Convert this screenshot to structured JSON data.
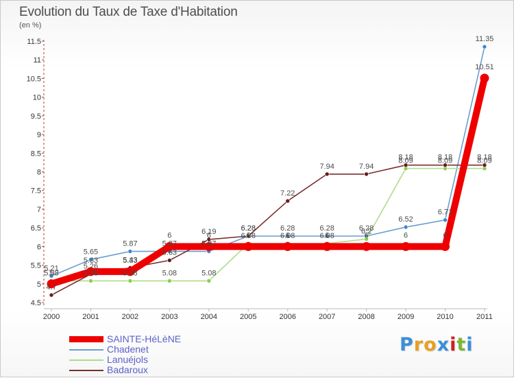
{
  "header": {
    "title": "Evolution du Taux de Taxe d'Habitation",
    "unit": "(en %)"
  },
  "brand": {
    "logo_text": "Proxiti",
    "letter_colors": [
      "#3a8fd8",
      "#e8a020",
      "#e8a020",
      "#3a8fd8",
      "#d02020",
      "#7ab830",
      "#3a8fd8"
    ]
  },
  "chart_data": {
    "type": "line",
    "title": "Evolution du Taux de Taxe d'Habitation",
    "ylabel": "(en %)",
    "xlabel": "",
    "x": [
      "2000",
      "2001",
      "2002",
      "2003",
      "2004",
      "2005",
      "2006",
      "2007",
      "2008",
      "2009",
      "2010",
      "2011"
    ],
    "ylim": [
      4.5,
      11.5
    ],
    "yticks": [
      "4.5",
      "5",
      "5.5",
      "6",
      "6.5",
      "7",
      "7.5",
      "8",
      "8.5",
      "9",
      "9.5",
      "10",
      "10.5",
      "11",
      "11.5"
    ],
    "grid": false,
    "legend_position": "bottom-left",
    "series": [
      {
        "name": "SAINTE-HéLèNE",
        "color": "#ee0000",
        "emphasis": true,
        "values": [
          5.0,
          5.33,
          5.33,
          6.0,
          6.0,
          6.0,
          6.0,
          6.0,
          6.0,
          6.0,
          6.0,
          10.51
        ],
        "labels": [
          "5",
          "5.33",
          "5.33",
          "6",
          "6",
          "6",
          "6",
          "6",
          "6",
          "6",
          "6",
          "10.51"
        ]
      },
      {
        "name": "Chadenet",
        "color": "#6a9ed0",
        "point_color": "#3f86cc",
        "emphasis": false,
        "values": [
          5.21,
          5.65,
          5.87,
          5.87,
          5.87,
          6.28,
          6.28,
          6.28,
          6.28,
          6.52,
          6.71,
          11.35
        ],
        "labels": [
          "5.21",
          "5.65",
          "5.87",
          "5.87",
          "5.87",
          "6.28",
          "6.28",
          "6.28",
          "6.28",
          "6.52",
          "6.71",
          "11.35"
        ]
      },
      {
        "name": "Lanuéjols",
        "color": "#aedc8a",
        "point_color": "#8acf4a",
        "emphasis": false,
        "values": [
          5.08,
          5.08,
          5.08,
          5.08,
          5.08,
          6.08,
          6.08,
          6.08,
          6.2,
          8.09,
          8.09,
          8.09
        ],
        "labels": [
          "5.08",
          "5.08",
          "5.08",
          "5.08",
          "5.08",
          "6.08",
          "6.08",
          "6.08",
          "6.2",
          "8.09",
          "8.09",
          "8.09"
        ]
      },
      {
        "name": "Badaroux",
        "color": "#7a2e2e",
        "point_color": "#6a1c1c",
        "emphasis": false,
        "values": [
          4.7,
          5.26,
          5.43,
          5.63,
          6.19,
          6.28,
          7.22,
          7.94,
          7.94,
          8.18,
          8.18,
          8.18
        ],
        "labels": [
          "4.7",
          "5.26",
          "5.43",
          "5.63",
          "6.19",
          "6.28",
          "7.22",
          "7.94",
          "7.94",
          "8.18",
          "8.18",
          "8.18"
        ]
      }
    ]
  }
}
